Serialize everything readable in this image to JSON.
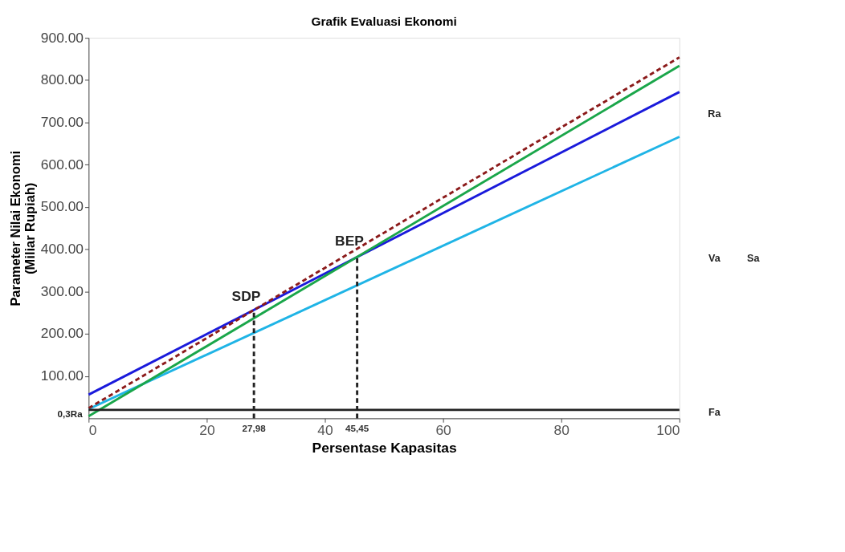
{
  "chart_data": {
    "type": "line",
    "title": "Grafik Evaluasi Ekonomi",
    "xlabel": "Persentase Kapasitas",
    "ylabel": "Parameter Nilai Ekonomi\n(Miliar Rupiah)",
    "xlim": [
      0,
      100
    ],
    "xticks": [
      0,
      20,
      40,
      60,
      80,
      100
    ],
    "ylim": [
      0,
      900
    ],
    "yticks": [
      {
        "value": 100,
        "label": "100.00"
      },
      {
        "value": 200,
        "label": "200.00"
      },
      {
        "value": 300,
        "label": "300.00"
      },
      {
        "value": 400,
        "label": "400.00"
      },
      {
        "value": 500,
        "label": "500.00"
      },
      {
        "value": 600,
        "label": "600.00"
      },
      {
        "value": 700,
        "label": "700.00"
      },
      {
        "value": 800,
        "label": "800.00"
      },
      {
        "value": 900,
        "label": "900.00"
      }
    ],
    "grid": false,
    "marker": "none",
    "x": [
      0,
      100
    ],
    "series": [
      {
        "color": "#1a1adb",
        "values": [
          56,
          772
        ],
        "line_style": "solid"
      },
      {
        "color": "#1fb4e6",
        "values": [
          22,
          666
        ],
        "line_style": "solid"
      },
      {
        "color": "#1aa64a",
        "values": [
          5,
          834
        ],
        "line_style": "solid"
      },
      {
        "color": "#8b1a1a",
        "values": [
          24,
          854
        ],
        "line_style": "dashed"
      },
      {
        "color": "#222222",
        "values": [
          20,
          20
        ],
        "line_style": "solid"
      }
    ],
    "ref_lines": [
      {
        "axis": "x",
        "value": 27.98,
        "label": "27,98",
        "color": "#222222",
        "line_style": "dashed"
      },
      {
        "axis": "x",
        "value": 45.45,
        "label": "45,45",
        "color": "#222222",
        "line_style": "dashed"
      }
    ],
    "annotations": [
      {
        "text": "SDP",
        "x": 27.98,
        "y": 250
      },
      {
        "text": "BEP",
        "x": 45.45,
        "y": 382
      },
      "Ra",
      "Va",
      "Sa",
      "Fa",
      {
        "text": "0,3Ra",
        "x": 0,
        "y": 10
      }
    ]
  }
}
